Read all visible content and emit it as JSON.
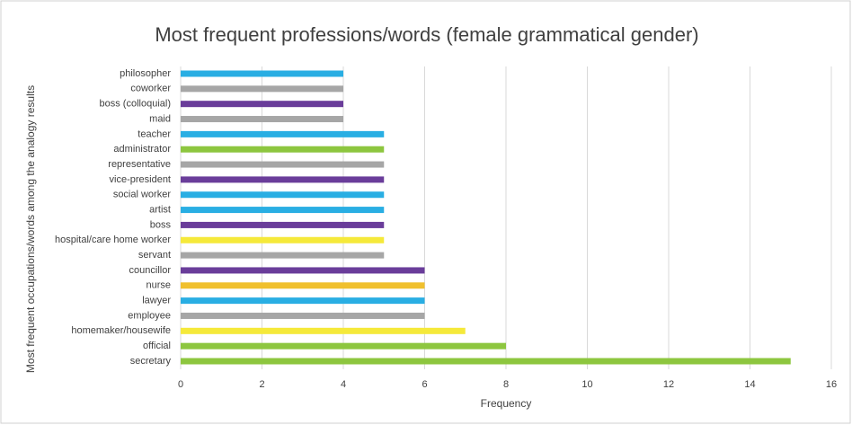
{
  "chart_data": {
    "type": "bar",
    "orientation": "horizontal",
    "title": "Most frequent professions/words (female grammatical gender)",
    "x_label": "Frequency",
    "y_label": "Most frequent occupations/words among the analogy results",
    "categories": [
      "philosopher",
      "coworker",
      "boss (colloquial)",
      "maid",
      "teacher",
      "administrator",
      "representative",
      "vice-president",
      "social worker",
      "artist",
      "boss",
      "hospital/care home worker",
      "servant",
      "councillor",
      "nurse",
      "lawyer",
      "employee",
      "homemaker/housewife",
      "official",
      "secretary"
    ],
    "values": [
      4,
      4,
      4,
      4,
      5,
      5,
      5,
      5,
      5,
      5,
      5,
      5,
      5,
      6,
      6,
      6,
      6,
      7,
      8,
      15
    ],
    "colors": [
      "#29aee3",
      "#a6a6a6",
      "#6a3d9a",
      "#a6a6a6",
      "#29aee3",
      "#8dc63f",
      "#a6a6a6",
      "#6a3d9a",
      "#29aee3",
      "#29aee3",
      "#6a3d9a",
      "#f5e93a",
      "#a6a6a6",
      "#6a3d9a",
      "#f0c02e",
      "#29aee3",
      "#a6a6a6",
      "#f5e93a",
      "#8dc63f",
      "#8dc63f"
    ],
    "xlim": [
      0,
      16
    ],
    "xticks": [
      0,
      2,
      4,
      6,
      8,
      10,
      12,
      14,
      16
    ],
    "grid": true
  }
}
